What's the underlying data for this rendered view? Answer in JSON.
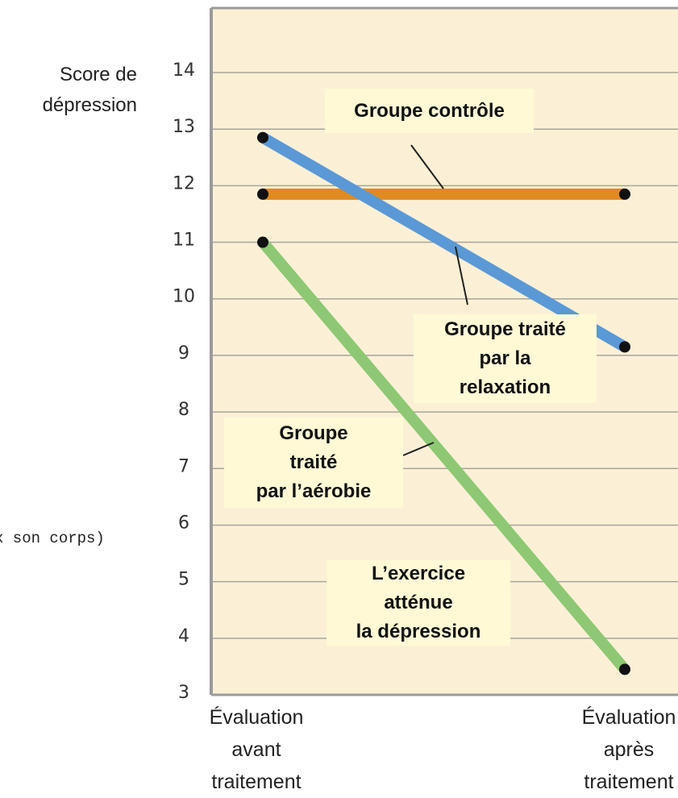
{
  "chart_data": {
    "type": "line",
    "y_label": "Score de\ndépression",
    "categories": [
      "Évaluation\navant\ntraitement",
      "Évaluation\naprès\ntraitement"
    ],
    "series": [
      {
        "name": "Groupe contrôle",
        "color": "#e08a22",
        "values": [
          11.85,
          11.85
        ]
      },
      {
        "name": "Groupe traité\npar la\nrelaxation",
        "color": "#5b98d6",
        "values": [
          12.85,
          9.15
        ]
      },
      {
        "name": "Groupe\ntraité\npar l’aérobie",
        "color": "#8ec874",
        "values": [
          11.0,
          3.45
        ]
      }
    ],
    "annotation": "L’exercice\natténue\nla dépression",
    "cropped_text": "x son corps)",
    "ylim": [
      3,
      15.14
    ],
    "yticks": [
      3,
      4,
      5,
      6,
      7,
      8,
      9,
      10,
      11,
      12,
      13,
      14
    ],
    "grid": true
  }
}
